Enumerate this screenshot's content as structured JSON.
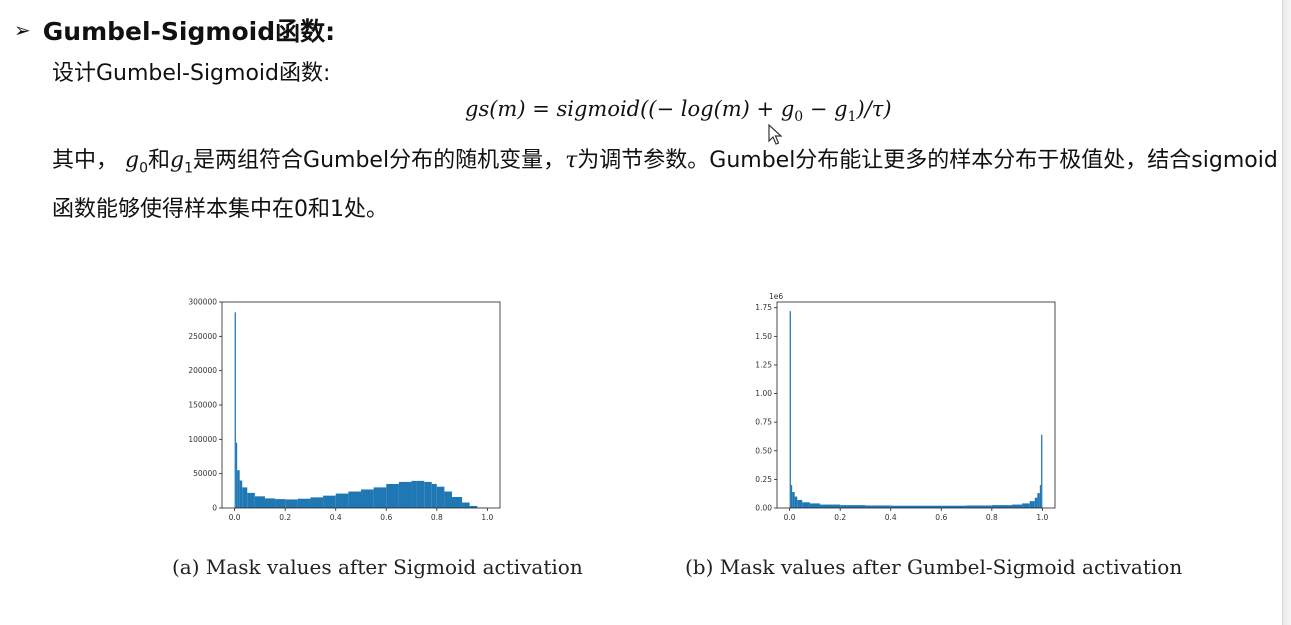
{
  "heading": {
    "bullet": "➢",
    "title": "Gumbel-Sigmoid函数:"
  },
  "intro": "设计Gumbel-Sigmoid函数:",
  "formula": {
    "lhs": "gs(m) = sigmoid((− log(m) + g",
    "sub0": "0",
    "mid": " − g",
    "sub1": "1",
    "rhs": ")/τ)"
  },
  "paragraph": {
    "p1": "其中， ",
    "g": "g",
    "s0": "0",
    "p2": "和",
    "s1": "1",
    "p3": "是两组符合Gumbel分布的随机变量，",
    "tau": "τ",
    "p4": "为调节参数。Gumbel分布能让更多的样本分布于极值处，结合sigmoid函数能够使得样本集中在0和1处。"
  },
  "chart_data": [
    {
      "type": "bar",
      "title": "",
      "xlabel": "",
      "ylabel": "",
      "xlim": [
        -0.05,
        1.05
      ],
      "ylim": [
        0,
        300000
      ],
      "xticks": [
        "0.0",
        "0.2",
        "0.4",
        "0.6",
        "0.8",
        "1.0"
      ],
      "yticks": [
        "0",
        "50000",
        "100000",
        "150000",
        "200000",
        "250000",
        "300000"
      ],
      "x": [
        0.0,
        0.005,
        0.01,
        0.02,
        0.03,
        0.05,
        0.08,
        0.12,
        0.16,
        0.2,
        0.25,
        0.3,
        0.35,
        0.4,
        0.45,
        0.5,
        0.55,
        0.6,
        0.65,
        0.7,
        0.72,
        0.75,
        0.78,
        0.8,
        0.83,
        0.86,
        0.9,
        0.93,
        0.96,
        1.0
      ],
      "values": [
        285000,
        95000,
        55000,
        40000,
        30000,
        22000,
        17000,
        14000,
        13000,
        12500,
        13500,
        15500,
        18000,
        21000,
        24000,
        27000,
        30000,
        35000,
        38000,
        39500,
        39500,
        38000,
        35000,
        31000,
        24000,
        16000,
        8000,
        3000,
        500,
        0
      ],
      "caption": "(a) Mask values after Sigmoid activation",
      "color": "#1f77b4"
    },
    {
      "type": "bar",
      "title": "",
      "xlabel": "",
      "ylabel": "",
      "scale_label": "1e6",
      "xlim": [
        -0.05,
        1.05
      ],
      "ylim": [
        0,
        1.8
      ],
      "xticks": [
        "0.0",
        "0.2",
        "0.4",
        "0.6",
        "0.8",
        "1.0"
      ],
      "yticks": [
        "0.00",
        "0.25",
        "0.50",
        "0.75",
        "1.00",
        "1.25",
        "1.50",
        "1.75"
      ],
      "x": [
        0.0,
        0.005,
        0.01,
        0.02,
        0.03,
        0.05,
        0.08,
        0.12,
        0.2,
        0.3,
        0.4,
        0.5,
        0.6,
        0.7,
        0.8,
        0.88,
        0.92,
        0.95,
        0.97,
        0.98,
        0.99,
        0.995,
        1.0
      ],
      "values": [
        1.72,
        0.2,
        0.14,
        0.1,
        0.07,
        0.05,
        0.04,
        0.03,
        0.025,
        0.022,
        0.02,
        0.02,
        0.02,
        0.022,
        0.025,
        0.03,
        0.04,
        0.06,
        0.09,
        0.13,
        0.2,
        0.64,
        0.0
      ],
      "caption": "(b) Mask values after Gumbel-Sigmoid activation",
      "color": "#1f77b4"
    }
  ]
}
